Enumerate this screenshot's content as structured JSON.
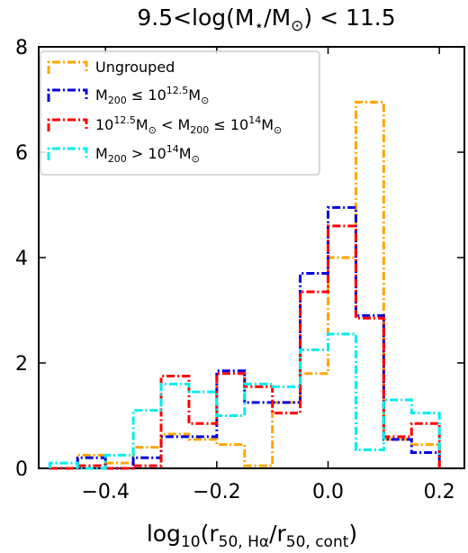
{
  "chart_data": {
    "type": "histogram",
    "title": "9.5<log(M⋆/M⊙) < 11.5",
    "xlabel": "log10(r50, Hα/r50, cont)",
    "ylabel": "",
    "xlim": [
      -0.52,
      0.245
    ],
    "ylim": [
      0,
      8
    ],
    "xticks": [
      -0.4,
      -0.2,
      0.0,
      0.2
    ],
    "xtick_labels": [
      "−0.4",
      "−0.2",
      "0.0",
      "0.2"
    ],
    "yticks": [
      0,
      2,
      4,
      6,
      8
    ],
    "ytick_labels": [
      "0",
      "2",
      "4",
      "6",
      "8"
    ],
    "bin_edges": [
      -0.5,
      -0.45,
      -0.4,
      -0.35,
      -0.3,
      -0.25,
      -0.2,
      -0.15,
      -0.1,
      -0.05,
      0.0,
      0.05,
      0.1,
      0.15,
      0.2
    ],
    "legend_position": "upper-left",
    "series": [
      {
        "name": "Ungrouped",
        "color": "#ffa500",
        "values": [
          0,
          0.25,
          0.1,
          0.4,
          0.65,
          0.55,
          0.45,
          0.05,
          1.25,
          1.8,
          4.0,
          6.95,
          0.55,
          0.45,
          0.2
        ]
      },
      {
        "name": "M200 ≤ 10^12.5 M⊙",
        "color": "#0000dd",
        "values": [
          0,
          0.2,
          0.0,
          0.2,
          0.6,
          0.6,
          1.85,
          1.25,
          1.25,
          3.7,
          4.95,
          2.9,
          0.55,
          0.3,
          0.0
        ]
      },
      {
        "name": "10^12.5 M⊙ < M200 ≤ 10^14 M⊙",
        "color": "#ff0000",
        "values": [
          0,
          0.05,
          0.0,
          0.05,
          1.75,
          0.85,
          1.8,
          1.55,
          1.05,
          3.35,
          4.6,
          2.85,
          0.6,
          0.85,
          0.0
        ]
      },
      {
        "name": "M200 > 10^14 M⊙",
        "color": "#00eeee",
        "values": [
          0.1,
          0.0,
          0.25,
          1.1,
          1.6,
          1.45,
          1.0,
          1.6,
          1.55,
          2.25,
          2.55,
          0.35,
          1.3,
          1.05,
          0.2
        ]
      }
    ]
  },
  "legend": {
    "items": [
      {
        "name": "Ungrouped",
        "main": "Ungrouped"
      },
      {
        "name": "M200 ≤ 10^12.5 M⊙",
        "m": "M",
        "sub200": "200",
        "rel": " ≤ 10",
        "sup": "12.5",
        "unit": "M",
        "unitsub": "⊙"
      },
      {
        "name": "10^12.5 M⊙ < M200 ≤ 10^14 M⊙",
        "a": "10",
        "asup": "12.5",
        "b": "M",
        "bsub": "⊙",
        "c": " < M",
        "csub": "200",
        "d": " ≤ 10",
        "dsup": "14",
        "e": "M",
        "esub": "⊙"
      },
      {
        "name": "M200 > 10^14 M⊙",
        "m": "M",
        "sub200": "200",
        "rel": " > 10",
        "sup": "14",
        "unit": "M",
        "unitsub": "⊙"
      }
    ]
  },
  "title_parts": {
    "pre": "9.5<log(M",
    "star": "⋆",
    "mid": "/M",
    "sun": "⊙",
    "post": ") < 11.5"
  },
  "xlabel_parts": {
    "log": "log",
    "ten": "10",
    "open": "(r",
    "num": "50, Hα",
    "slash": "/r",
    "den": "50, cont",
    "close": ")"
  }
}
